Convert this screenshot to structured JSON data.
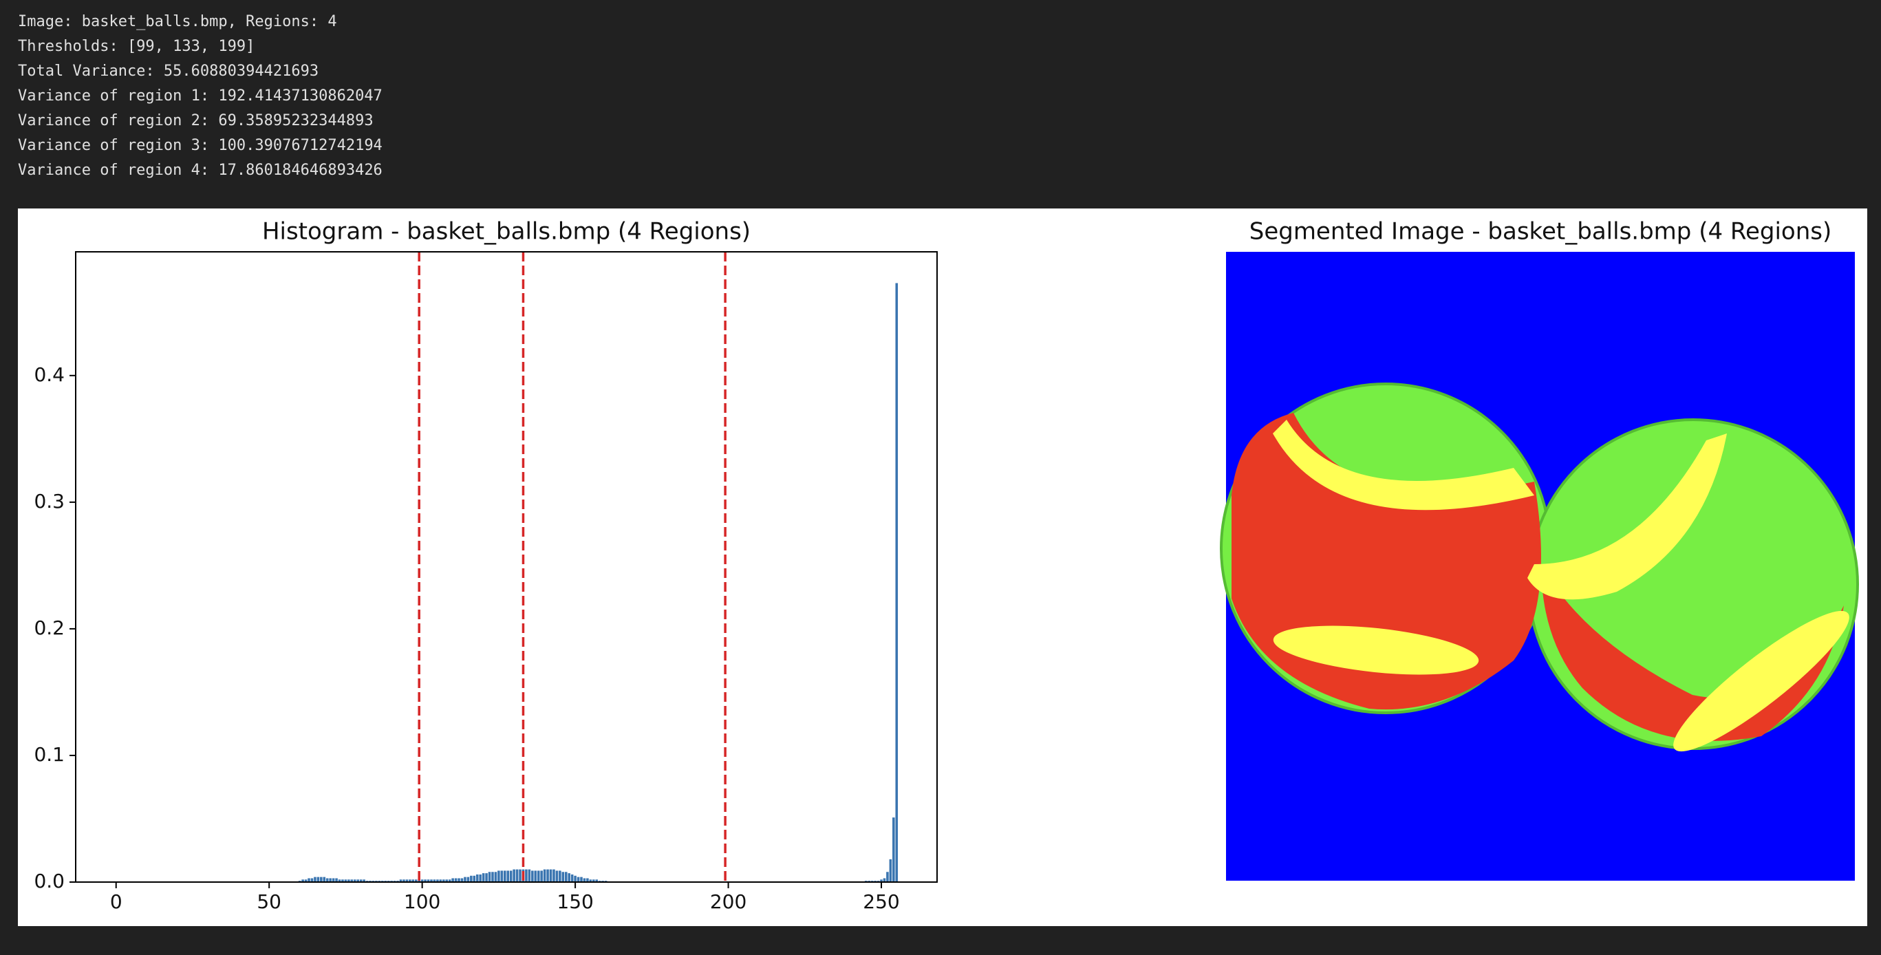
{
  "output": [
    "Image: basket_balls.bmp, Regions: 4",
    "Thresholds: [99, 133, 199]",
    "Total Variance: 55.60880394421693",
    "Variance of region 1: 192.41437130862047",
    "Variance of region 2: 69.35895232344893",
    "Variance of region 3: 100.39076712742194",
    "Variance of region 4: 17.860184646893426"
  ],
  "chart_data": [
    {
      "type": "bar",
      "title": "Histogram - basket_balls.bmp (4 Regions)",
      "color": "#3a75b0",
      "x": [
        60,
        61,
        62,
        63,
        64,
        65,
        66,
        67,
        68,
        69,
        70,
        71,
        72,
        73,
        74,
        75,
        76,
        77,
        78,
        79,
        80,
        81,
        82,
        83,
        84,
        85,
        86,
        87,
        88,
        89,
        90,
        91,
        92,
        93,
        94,
        95,
        96,
        97,
        98,
        99,
        100,
        101,
        102,
        103,
        104,
        105,
        106,
        107,
        108,
        109,
        110,
        111,
        112,
        113,
        114,
        115,
        116,
        117,
        118,
        119,
        120,
        121,
        122,
        123,
        124,
        125,
        126,
        127,
        128,
        129,
        130,
        131,
        132,
        133,
        134,
        135,
        136,
        137,
        138,
        139,
        140,
        141,
        142,
        143,
        144,
        145,
        146,
        147,
        148,
        149,
        150,
        151,
        152,
        153,
        154,
        155,
        156,
        157,
        158,
        159,
        160,
        245,
        246,
        247,
        248,
        249,
        250,
        251,
        252,
        253,
        254,
        255
      ],
      "values": [
        0.001,
        0.002,
        0.002,
        0.003,
        0.003,
        0.004,
        0.004,
        0.004,
        0.004,
        0.003,
        0.003,
        0.003,
        0.003,
        0.002,
        0.002,
        0.002,
        0.002,
        0.002,
        0.002,
        0.002,
        0.002,
        0.002,
        0.001,
        0.001,
        0.001,
        0.001,
        0.001,
        0.001,
        0.001,
        0.001,
        0.001,
        0.001,
        0.001,
        0.002,
        0.002,
        0.002,
        0.002,
        0.002,
        0.002,
        0.002,
        0.002,
        0.002,
        0.002,
        0.002,
        0.002,
        0.002,
        0.002,
        0.002,
        0.002,
        0.002,
        0.003,
        0.003,
        0.003,
        0.003,
        0.004,
        0.004,
        0.005,
        0.005,
        0.006,
        0.006,
        0.007,
        0.007,
        0.008,
        0.008,
        0.008,
        0.009,
        0.009,
        0.009,
        0.009,
        0.009,
        0.01,
        0.01,
        0.01,
        0.01,
        0.01,
        0.01,
        0.009,
        0.009,
        0.009,
        0.009,
        0.01,
        0.01,
        0.01,
        0.01,
        0.009,
        0.009,
        0.008,
        0.008,
        0.007,
        0.006,
        0.005,
        0.004,
        0.004,
        0.003,
        0.003,
        0.002,
        0.002,
        0.002,
        0.001,
        0.001,
        0.001,
        0.001,
        0.001,
        0.001,
        0.001,
        0.001,
        0.002,
        0.003,
        0.008,
        0.018,
        0.051,
        0.473
      ],
      "thresholds": [
        99,
        133,
        199
      ],
      "threshold_color": "#d62728",
      "xlim": [
        -13.2,
        268.2
      ],
      "xticks": [
        0,
        50,
        100,
        150,
        200,
        250
      ],
      "ylim": [
        0,
        0.4977
      ],
      "yticks": [
        {
          "value": 0,
          "label": "0.0"
        },
        0.1,
        0.2,
        0.3,
        0.4
      ],
      "grid": false
    },
    {
      "type": "image",
      "title": "Segmented Image - basket_balls.bmp (4 Regions)"
    }
  ]
}
